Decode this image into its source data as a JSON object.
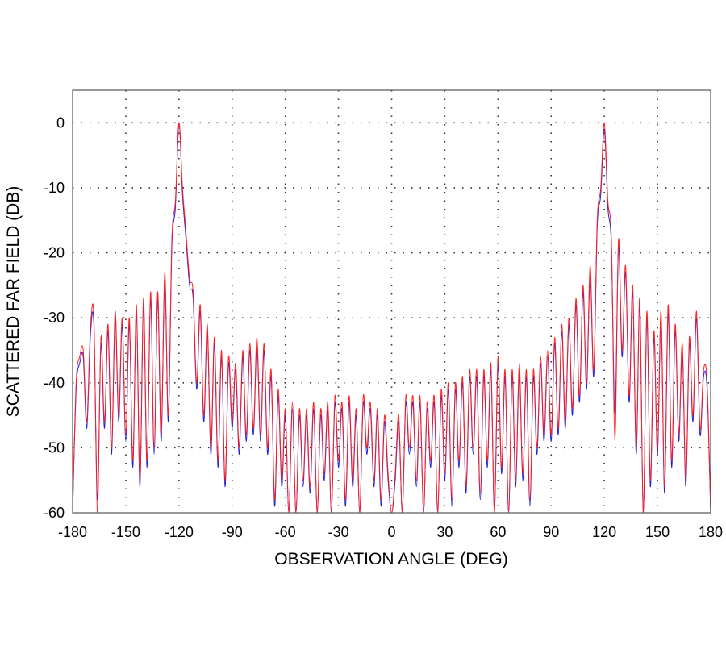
{
  "chart_data": {
    "type": "line",
    "title": "",
    "xlabel": "OBSERVATION ANGLE (DEG)",
    "ylabel": "SCATTERED FAR FIELD (DB)",
    "xlim": [
      -180,
      180
    ],
    "ylim": [
      -60,
      5
    ],
    "grid": true,
    "x_start": -180,
    "x_step": 2,
    "xticks": [
      "-180",
      "-150",
      "-120",
      "-90",
      "-60",
      "-30",
      "0",
      "30",
      "60",
      "90",
      "120",
      "150",
      "180"
    ],
    "xtick_values": [
      -180,
      -150,
      -120,
      -90,
      -60,
      -30,
      0,
      30,
      60,
      90,
      120,
      150,
      180
    ],
    "yticks": [
      "0",
      "-10",
      "-20",
      "-30",
      "-40",
      "-50",
      "-60"
    ],
    "ytick_values": [
      0,
      -10,
      -20,
      -30,
      -40,
      -50,
      -60
    ],
    "series": [
      {
        "name": "blue",
        "color": "#2020e0",
        "values": [
          -60,
          -41,
          -37,
          -36,
          -47,
          -33,
          -31,
          -58,
          -34,
          -47,
          -32,
          -51,
          -30,
          -46,
          -31,
          -49,
          -31,
          -53,
          -29,
          -56,
          -28,
          -53,
          -27,
          -51,
          -27,
          -49,
          -24,
          -46,
          -19,
          -13,
          0,
          -11,
          -18,
          -25,
          -27,
          -41,
          -29,
          -46,
          -32,
          -51,
          -34,
          -53,
          -36,
          -56,
          -37,
          -47,
          -38,
          -51,
          -36,
          -49,
          -35,
          -48,
          -34,
          -49,
          -35,
          -51,
          -39,
          -59,
          -42,
          -56,
          -45,
          -60,
          -44,
          -60,
          -45,
          -56,
          -45,
          -57,
          -44,
          -60,
          -45,
          -55,
          -44,
          -60,
          -43,
          -53,
          -44,
          -59,
          -43,
          -56,
          -45,
          -60,
          -43,
          -51,
          -44,
          -56,
          -45,
          -59,
          -46,
          -55,
          -60,
          -55,
          -46,
          -60,
          -43,
          -51,
          -43,
          -56,
          -43,
          -60,
          -44,
          -53,
          -43,
          -60,
          -42,
          -55,
          -41,
          -59,
          -41,
          -53,
          -40,
          -57,
          -39,
          -51,
          -39,
          -58,
          -39,
          -53,
          -38,
          -60,
          -37,
          -54,
          -39,
          -60,
          -39,
          -56,
          -38,
          -55,
          -39,
          -59,
          -39,
          -51,
          -37,
          -49,
          -36,
          -49,
          -34,
          -48,
          -32,
          -47,
          -31,
          -45,
          -28,
          -43,
          -26,
          -41,
          -23,
          -39,
          -16,
          -11,
          -1,
          -13,
          -19,
          -45,
          -19,
          -36,
          -23,
          -43,
          -26,
          -51,
          -28,
          -60,
          -30,
          -56,
          -33,
          -51,
          -30,
          -57,
          -29,
          -53,
          -32,
          -49,
          -35,
          -56,
          -34,
          -46,
          -30,
          -48,
          -39,
          -41,
          -60
        ]
      },
      {
        "name": "red",
        "color": "#ff2020",
        "values": [
          -60,
          -40,
          -36,
          -35,
          -46,
          -32,
          -30,
          -60,
          -33,
          -46,
          -31,
          -50,
          -29,
          -45,
          -30,
          -48,
          -30,
          -52,
          -28,
          -55,
          -27,
          -52,
          -26,
          -50,
          -26,
          -48,
          -23,
          -45,
          -18,
          -12,
          0,
          -10,
          -17,
          -24,
          -26,
          -40,
          -28,
          -45,
          -31,
          -50,
          -33,
          -52,
          -35,
          -55,
          -36,
          -46,
          -37,
          -50,
          -35,
          -48,
          -34,
          -47,
          -33,
          -48,
          -34,
          -50,
          -38,
          -58,
          -41,
          -55,
          -44,
          -60,
          -43,
          -60,
          -44,
          -55,
          -44,
          -56,
          -43,
          -60,
          -44,
          -54,
          -43,
          -60,
          -42,
          -52,
          -43,
          -58,
          -42,
          -55,
          -44,
          -60,
          -42,
          -50,
          -43,
          -55,
          -44,
          -58,
          -45,
          -54,
          -60,
          -54,
          -45,
          -60,
          -42,
          -50,
          -42,
          -55,
          -42,
          -60,
          -43,
          -52,
          -42,
          -60,
          -41,
          -54,
          -40,
          -58,
          -40,
          -52,
          -39,
          -56,
          -38,
          -50,
          -38,
          -57,
          -38,
          -52,
          -37,
          -60,
          -36,
          -53,
          -38,
          -60,
          -38,
          -55,
          -37,
          -54,
          -38,
          -58,
          -38,
          -50,
          -36,
          -48,
          -35,
          -48,
          -33,
          -47,
          -31,
          -46,
          -30,
          -44,
          -27,
          -42,
          -25,
          -40,
          -22,
          -38,
          -15,
          -10,
          0,
          -12,
          -18,
          -49,
          -18,
          -35,
          -22,
          -42,
          -25,
          -50,
          -27,
          -60,
          -29,
          -55,
          -32,
          -50,
          -29,
          -56,
          -28,
          -52,
          -31,
          -48,
          -34,
          -55,
          -33,
          -45,
          -29,
          -47,
          -38,
          -40,
          -60
        ]
      }
    ]
  }
}
